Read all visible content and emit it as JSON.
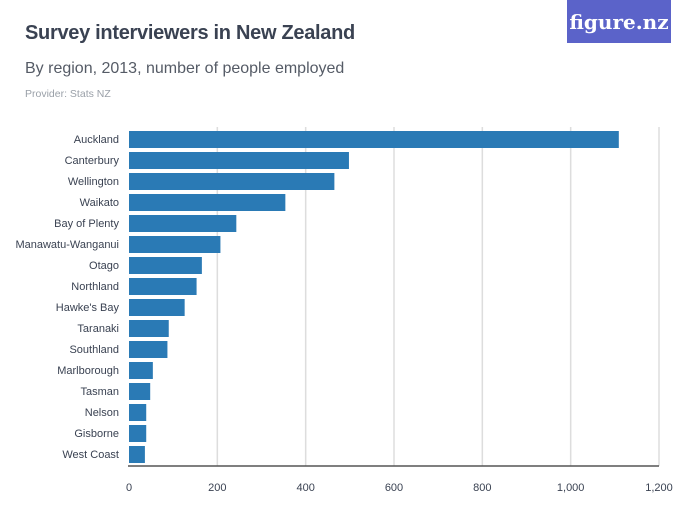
{
  "header": {
    "title": "Survey interviewers in New Zealand",
    "subtitle": "By region, 2013, number of people employed",
    "provider": "Provider: Stats NZ",
    "logo": "figure.nz"
  },
  "colors": {
    "bar": "#2a7ab5",
    "grid": "#dddddd",
    "axis": "#555555",
    "logo_bg": "#5b63c9"
  },
  "chart_data": {
    "type": "bar",
    "orientation": "horizontal",
    "title": "Survey interviewers in New Zealand",
    "subtitle": "By region, 2013, number of people employed",
    "categories": [
      "Auckland",
      "Canterbury",
      "Wellington",
      "Waikato",
      "Bay of Plenty",
      "Manawatu-Wanganui",
      "Otago",
      "Northland",
      "Hawke's Bay",
      "Taranaki",
      "Southland",
      "Marlborough",
      "Tasman",
      "Nelson",
      "Gisborne",
      "West Coast"
    ],
    "values": [
      1109,
      498,
      465,
      354,
      243,
      207,
      165,
      153,
      126,
      90,
      87,
      54,
      48,
      39,
      39,
      36
    ],
    "xlim": [
      0,
      1200
    ],
    "ticks": [
      0,
      200,
      400,
      600,
      800,
      1000,
      1200
    ],
    "tick_labels": [
      "0",
      "200",
      "400",
      "600",
      "800",
      "1,000",
      "1,200"
    ],
    "grid": true
  }
}
